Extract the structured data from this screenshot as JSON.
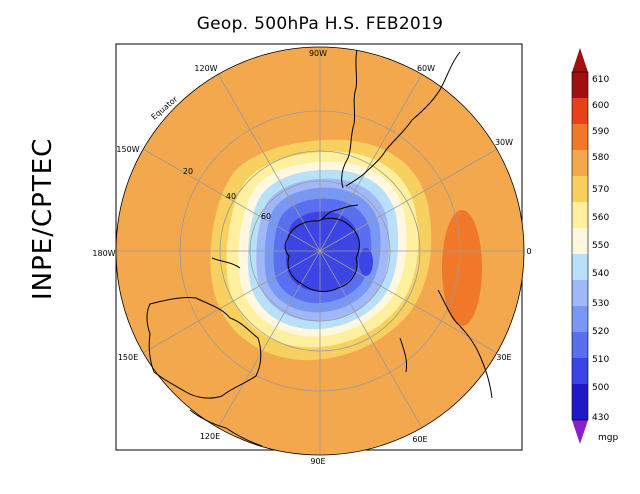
{
  "title": "Geop. 500hPa H.S. FEB2019",
  "side_label": "INPE/CPTEC",
  "longitude_labels": {
    "lon_90w": "90W",
    "lon_60w": "60W",
    "lon_30w": "30W",
    "lon_0": "0",
    "lon_30e": "30E",
    "lon_60e": "60E",
    "lon_90e": "90E",
    "lon_120e": "120E",
    "lon_150e": "150E",
    "lon_180w": "180W",
    "lon_150w": "150W",
    "lon_120w": "120W"
  },
  "latitude_labels": {
    "lat_20": "20",
    "lat_40": "40",
    "lat_60": "60"
  },
  "equator_label": "Equator",
  "colorbar": {
    "unit": "mgp",
    "labels": [
      "610",
      "600",
      "590",
      "580",
      "570",
      "560",
      "550",
      "540",
      "530",
      "520",
      "510",
      "500",
      "430"
    ],
    "colors": [
      "#a01010",
      "#e8401a",
      "#f07828",
      "#f4a84e",
      "#f8d060",
      "#fff0a0",
      "#fff8e0",
      "#b8e0f8",
      "#a0b8f8",
      "#7898f4",
      "#5a6ef0",
      "#3c44e4",
      "#2018c8"
    ],
    "top_arrow_color": "#a01010",
    "bottom_arrow_color": "#8a1ecc"
  },
  "field_colors": {
    "c580": "#f4a84e",
    "c590": "#f07828",
    "c570": "#f8d060",
    "c560": "#fff0a0",
    "c550": "#fff8e0",
    "c540": "#b8e0f8",
    "c530": "#a0b8f8",
    "c520": "#7898f4",
    "c510": "#5a6ef0",
    "c500": "#3c44e4"
  }
}
